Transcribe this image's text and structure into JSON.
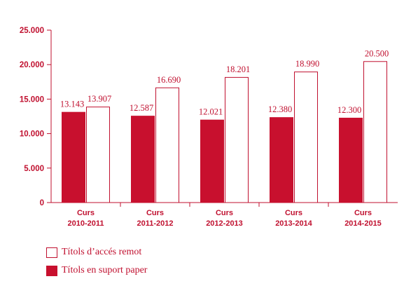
{
  "colors": {
    "accent": "#c0102f",
    "paper_fill": "#c8102e",
    "remote_fill": "#ffffff"
  },
  "chart_data": {
    "type": "bar",
    "categories": [
      [
        "Curs",
        "2010-2011"
      ],
      [
        "Curs",
        "2011-2012"
      ],
      [
        "Curs",
        "2012-2013"
      ],
      [
        "Curs",
        "2013-2014"
      ],
      [
        "Curs",
        "2014-2015"
      ]
    ],
    "series": [
      {
        "name": "Títols en suport paper",
        "values": [
          13143,
          12587,
          12021,
          12380,
          12300
        ],
        "labels": [
          "13.143",
          "12.587",
          "12.021",
          "12.380",
          "12.300"
        ]
      },
      {
        "name": "Títols d’accés remot",
        "values": [
          13907,
          16690,
          18201,
          18990,
          20500
        ],
        "labels": [
          "13.907",
          "16.690",
          "18.201",
          "18.990",
          "20.500"
        ]
      }
    ],
    "yticks": [
      0,
      5000,
      10000,
      15000,
      20000,
      25000
    ],
    "ytick_labels": [
      "0",
      "5.000",
      "10.000",
      "15.000",
      "20.000",
      "25.000"
    ],
    "ylim": [
      0,
      25000
    ],
    "grid": false,
    "legend_position": "bottom-left"
  },
  "legend": {
    "remote_label": "Títols d’accés remot",
    "paper_label": "Títols en suport paper"
  }
}
